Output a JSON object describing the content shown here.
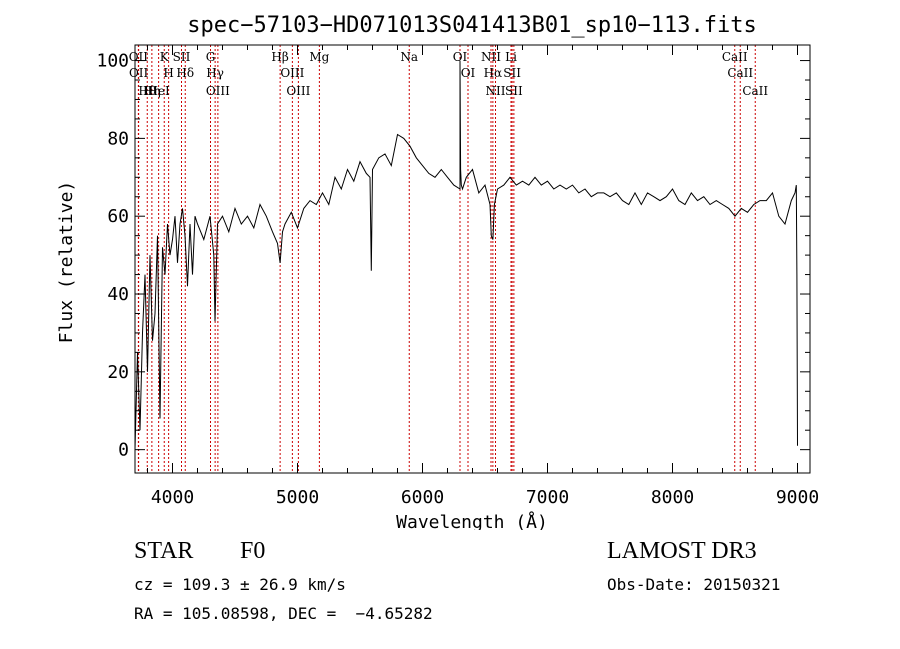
{
  "chart_data": {
    "type": "line",
    "title": "spec−57103−HD071013S041413B01_sp10−113.fits",
    "xlabel": "Wavelength (Å)",
    "ylabel": "Flux (relative)",
    "xlim": [
      3700,
      9100
    ],
    "ylim": [
      -6,
      104
    ],
    "xticks": [
      4000,
      5000,
      6000,
      7000,
      8000,
      9000
    ],
    "yticks": [
      0,
      20,
      40,
      60,
      80,
      100
    ],
    "series": [
      {
        "name": "flux",
        "color": "#000000",
        "x": [
          3700,
          3720,
          3740,
          3760,
          3780,
          3800,
          3820,
          3840,
          3860,
          3880,
          3900,
          3920,
          3940,
          3960,
          3980,
          4000,
          4020,
          4040,
          4060,
          4080,
          4100,
          4120,
          4140,
          4160,
          4180,
          4200,
          4250,
          4300,
          4330,
          4340,
          4360,
          4400,
          4450,
          4500,
          4550,
          4600,
          4650,
          4700,
          4750,
          4800,
          4840,
          4861,
          4880,
          4900,
          4950,
          5000,
          5050,
          5100,
          5150,
          5200,
          5250,
          5300,
          5350,
          5400,
          5450,
          5500,
          5550,
          5580,
          5590,
          5600,
          5650,
          5700,
          5750,
          5800,
          5850,
          5900,
          5950,
          6000,
          6050,
          6100,
          6150,
          6200,
          6250,
          6300,
          6300,
          6305,
          6310,
          6320,
          6350,
          6400,
          6450,
          6500,
          6540,
          6550,
          6563,
          6575,
          6600,
          6650,
          6700,
          6750,
          6800,
          6850,
          6900,
          6950,
          7000,
          7050,
          7100,
          7150,
          7200,
          7250,
          7300,
          7350,
          7400,
          7450,
          7500,
          7550,
          7600,
          7650,
          7700,
          7750,
          7800,
          7850,
          7900,
          7950,
          8000,
          8050,
          8100,
          8150,
          8200,
          8250,
          8300,
          8350,
          8400,
          8450,
          8500,
          8550,
          8600,
          8650,
          8700,
          8750,
          8800,
          8850,
          8900,
          8950,
          8980,
          8990,
          8995,
          9000
        ],
        "values": [
          0,
          25,
          5,
          30,
          45,
          20,
          50,
          28,
          35,
          55,
          8,
          52,
          45,
          58,
          50,
          54,
          60,
          48,
          58,
          62,
          55,
          42,
          58,
          45,
          60,
          58,
          54,
          60,
          50,
          33,
          58,
          60,
          56,
          62,
          58,
          60,
          57,
          63,
          60,
          56,
          53,
          48,
          56,
          58,
          61,
          57,
          62,
          64,
          63,
          66,
          63,
          70,
          67,
          72,
          69,
          74,
          71,
          70,
          46,
          72,
          75,
          76,
          73,
          81,
          80,
          78,
          75,
          73,
          71,
          70,
          72,
          70,
          68,
          67,
          100,
          72,
          68,
          67,
          70,
          72,
          66,
          68,
          63,
          55,
          54,
          63,
          67,
          68,
          70,
          68,
          69,
          68,
          70,
          68,
          69,
          67,
          68,
          67,
          68,
          66,
          67,
          65,
          66,
          66,
          65,
          66,
          64,
          63,
          66,
          63,
          66,
          65,
          64,
          65,
          67,
          64,
          63,
          66,
          64,
          65,
          63,
          64,
          63,
          62,
          60,
          62,
          61,
          63,
          64,
          64,
          66,
          60,
          58,
          64,
          66,
          68,
          45,
          1
        ]
      }
    ],
    "annotation_lines": [
      {
        "label": "Hθ",
        "x": 3798
      },
      {
        "label": "OII",
        "x": 3727
      },
      {
        "label": "OII",
        "x": 3729
      },
      {
        "label": "Hη",
        "x": 3835
      },
      {
        "label": "HeI",
        "x": 3889
      },
      {
        "label": "K",
        "x": 3934
      },
      {
        "label": "H",
        "x": 3969
      },
      {
        "label": "SII",
        "x": 4072
      },
      {
        "label": "Hδ",
        "x": 4102
      },
      {
        "label": "G",
        "x": 4304
      },
      {
        "label": "Hγ",
        "x": 4341
      },
      {
        "label": "OIII",
        "x": 4363
      },
      {
        "label": "Hβ",
        "x": 4861
      },
      {
        "label": "OIII",
        "x": 4959
      },
      {
        "label": "OIII",
        "x": 5007
      },
      {
        "label": "Mg",
        "x": 5175
      },
      {
        "label": "Na",
        "x": 5894
      },
      {
        "label": "OI",
        "x": 6300
      },
      {
        "label": "OI",
        "x": 6364
      },
      {
        "label": "NII",
        "x": 6548
      },
      {
        "label": "Hα",
        "x": 6563
      },
      {
        "label": "NII",
        "x": 6584
      },
      {
        "label": "Li",
        "x": 6708
      },
      {
        "label": "SII",
        "x": 6717
      },
      {
        "label": "SII",
        "x": 6731
      },
      {
        "label": "CaII",
        "x": 8498
      },
      {
        "label": "CaII",
        "x": 8542
      },
      {
        "label": "CaII",
        "x": 8662
      }
    ],
    "annotation_color": "#cc0000"
  },
  "info": {
    "object_class": "STAR",
    "subclass": "F0",
    "survey": "LAMOST DR3",
    "redshift_text": "cz = 109.3 ± 26.9 km/s",
    "obs_date_text": "Obs-Date: 20150321",
    "coords_text": "RA = 105.08598, DEC =  −4.65282"
  }
}
